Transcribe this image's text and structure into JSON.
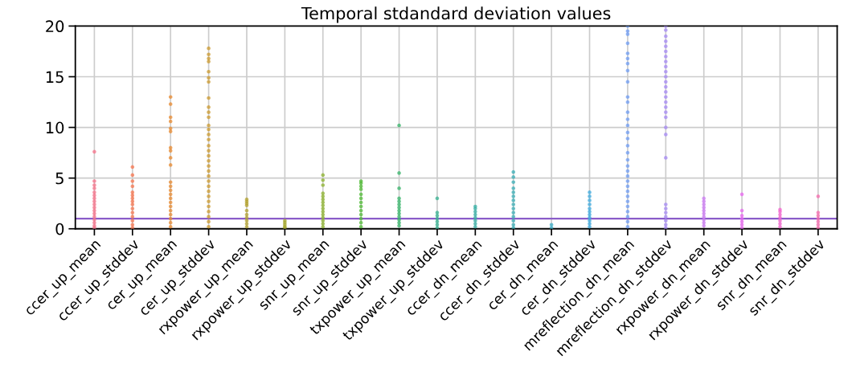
{
  "chart_data": {
    "type": "scatter",
    "title": "Temporal stdandard deviation values",
    "categories": [
      "ccer_up_mean",
      "ccer_up_stddev",
      "cer_up_mean",
      "cer_up_stddev",
      "rxpower_up_mean",
      "rxpower_up_stddev",
      "snr_up_mean",
      "snr_up_stddev",
      "txpower_up_mean",
      "txpower_up_stddev",
      "ccer_dn_mean",
      "ccer_dn_stddev",
      "cer_dn_mean",
      "cer_dn_stddev",
      "mreflection_dn_mean",
      "mreflection_dn_stddev",
      "rxpower_dn_mean",
      "rxpower_dn_stddev",
      "snr_dn_mean",
      "snr_dn_stddev"
    ],
    "ylim": [
      0,
      20
    ],
    "yticks": [
      0,
      5,
      10,
      15,
      20
    ],
    "grid": true,
    "marker": "circle",
    "legend": false,
    "ref_lines": [
      {
        "axis": "y",
        "value": 1,
        "color": "#8a5cc9"
      }
    ],
    "series": [
      {
        "color": "#f77189",
        "x": [
          "ccer_up_mean",
          "ccer_up_mean",
          "ccer_up_mean",
          "ccer_up_mean",
          "ccer_up_mean",
          "ccer_up_mean",
          "ccer_up_mean",
          "ccer_up_mean",
          "ccer_up_mean",
          "ccer_up_mean",
          "ccer_up_mean",
          "ccer_up_mean",
          "ccer_up_mean",
          "ccer_up_mean",
          "ccer_up_mean",
          "ccer_up_mean",
          "ccer_up_mean"
        ],
        "values": [
          7.6,
          4.7,
          4.3,
          4,
          3.6,
          3.3,
          3,
          2.7,
          2.4,
          2.1,
          1.8,
          1.5,
          1.2,
          0.9,
          0.6,
          0.3,
          0.1
        ]
      },
      {
        "color": "#f7754f",
        "x": [
          "ccer_up_stddev",
          "ccer_up_stddev",
          "ccer_up_stddev",
          "ccer_up_stddev",
          "ccer_up_stddev",
          "ccer_up_stddev",
          "ccer_up_stddev",
          "ccer_up_stddev",
          "ccer_up_stddev",
          "ccer_up_stddev",
          "ccer_up_stddev",
          "ccer_up_stddev",
          "ccer_up_stddev",
          "ccer_up_stddev",
          "ccer_up_stddev"
        ],
        "values": [
          6.1,
          5.3,
          4.7,
          4.2,
          3.6,
          3.3,
          3,
          2.7,
          2.4,
          2,
          1.6,
          1.2,
          0.8,
          0.4,
          0.1
        ]
      },
      {
        "color": "#e8892f",
        "x": [
          "cer_up_mean",
          "cer_up_mean",
          "cer_up_mean",
          "cer_up_mean",
          "cer_up_mean",
          "cer_up_mean",
          "cer_up_mean",
          "cer_up_mean",
          "cer_up_mean",
          "cer_up_mean",
          "cer_up_mean",
          "cer_up_mean",
          "cer_up_mean",
          "cer_up_mean",
          "cer_up_mean",
          "cer_up_mean",
          "cer_up_mean",
          "cer_up_mean",
          "cer_up_mean",
          "cer_up_mean",
          "cer_up_mean",
          "cer_up_mean"
        ],
        "values": [
          13,
          12.3,
          11,
          10.6,
          9.9,
          9.6,
          8,
          7.7,
          7,
          6.3,
          4.6,
          4.2,
          3.8,
          3.4,
          3,
          2.6,
          2.2,
          1.8,
          1.4,
          1,
          0.6,
          0.2
        ]
      },
      {
        "color": "#cc9a2e",
        "x": [
          "cer_up_stddev",
          "cer_up_stddev",
          "cer_up_stddev",
          "cer_up_stddev",
          "cer_up_stddev",
          "cer_up_stddev",
          "cer_up_stddev",
          "cer_up_stddev",
          "cer_up_stddev",
          "cer_up_stddev",
          "cer_up_stddev",
          "cer_up_stddev",
          "cer_up_stddev",
          "cer_up_stddev",
          "cer_up_stddev",
          "cer_up_stddev",
          "cer_up_stddev",
          "cer_up_stddev",
          "cer_up_stddev",
          "cer_up_stddev",
          "cer_up_stddev",
          "cer_up_stddev",
          "cer_up_stddev",
          "cer_up_stddev",
          "cer_up_stddev",
          "cer_up_stddev",
          "cer_up_stddev",
          "cer_up_stddev",
          "cer_up_stddev",
          "cer_up_stddev",
          "cer_up_stddev",
          "cer_up_stddev"
        ],
        "values": [
          17.8,
          17.2,
          16.8,
          16.5,
          15.5,
          14.9,
          14.5,
          12.9,
          12,
          11.5,
          11,
          10.2,
          9.8,
          9.3,
          8.8,
          8.2,
          7.7,
          7.2,
          6.7,
          6.2,
          5.7,
          5.2,
          4.7,
          4.2,
          3.7,
          3.2,
          2.7,
          2.2,
          1.7,
          1.2,
          0.7,
          0.2
        ]
      },
      {
        "color": "#b3a22e",
        "x": [
          "rxpower_up_mean",
          "rxpower_up_mean",
          "rxpower_up_mean",
          "rxpower_up_mean",
          "rxpower_up_mean",
          "rxpower_up_mean",
          "rxpower_up_mean",
          "rxpower_up_mean",
          "rxpower_up_mean",
          "rxpower_up_mean"
        ],
        "values": [
          2.9,
          2.7,
          2.5,
          2.3,
          1.8,
          1.4,
          1.1,
          0.8,
          0.5,
          0.2
        ]
      },
      {
        "color": "#a5a82f",
        "x": [
          "rxpower_up_stddev",
          "rxpower_up_stddev",
          "rxpower_up_stddev",
          "rxpower_up_stddev",
          "rxpower_up_stddev"
        ],
        "values": [
          0.8,
          0.6,
          0.4,
          0.2,
          0.1
        ]
      },
      {
        "color": "#8db32f",
        "x": [
          "snr_up_mean",
          "snr_up_mean",
          "snr_up_mean",
          "snr_up_mean",
          "snr_up_mean",
          "snr_up_mean",
          "snr_up_mean",
          "snr_up_mean",
          "snr_up_mean",
          "snr_up_mean",
          "snr_up_mean",
          "snr_up_mean",
          "snr_up_mean",
          "snr_up_mean",
          "snr_up_mean"
        ],
        "values": [
          5.3,
          4.8,
          4.3,
          3.5,
          3.2,
          2.9,
          2.6,
          2.3,
          2,
          1.7,
          1.4,
          1.1,
          0.8,
          0.5,
          0.2
        ]
      },
      {
        "color": "#4fbb34",
        "x": [
          "snr_up_stddev",
          "snr_up_stddev",
          "snr_up_stddev",
          "snr_up_stddev",
          "snr_up_stddev",
          "snr_up_stddev",
          "snr_up_stddev",
          "snr_up_stddev",
          "snr_up_stddev",
          "snr_up_stddev",
          "snr_up_stddev",
          "snr_up_stddev",
          "snr_up_stddev"
        ],
        "values": [
          4.7,
          4.5,
          4.2,
          3.9,
          3.4,
          3,
          2.6,
          2.2,
          1.8,
          1.4,
          1,
          0.6,
          0.2
        ]
      },
      {
        "color": "#34b468",
        "x": [
          "txpower_up_mean",
          "txpower_up_mean",
          "txpower_up_mean",
          "txpower_up_mean",
          "txpower_up_mean",
          "txpower_up_mean",
          "txpower_up_mean",
          "txpower_up_mean",
          "txpower_up_mean",
          "txpower_up_mean",
          "txpower_up_mean",
          "txpower_up_mean",
          "txpower_up_mean"
        ],
        "values": [
          10.2,
          5.5,
          4,
          3,
          2.7,
          2.4,
          2.1,
          1.8,
          1.5,
          1.2,
          0.9,
          0.6,
          0.3
        ]
      },
      {
        "color": "#36b190",
        "x": [
          "txpower_up_stddev",
          "txpower_up_stddev",
          "txpower_up_stddev",
          "txpower_up_stddev",
          "txpower_up_stddev",
          "txpower_up_stddev",
          "txpower_up_stddev"
        ],
        "values": [
          3,
          1.6,
          1.3,
          1,
          0.7,
          0.4,
          0.1
        ]
      },
      {
        "color": "#37b0a6",
        "x": [
          "ccer_dn_mean",
          "ccer_dn_mean",
          "ccer_dn_mean",
          "ccer_dn_mean",
          "ccer_dn_mean",
          "ccer_dn_mean",
          "ccer_dn_mean",
          "ccer_dn_mean"
        ],
        "values": [
          2.2,
          2,
          1.7,
          1.4,
          1.1,
          0.8,
          0.5,
          0.2
        ]
      },
      {
        "color": "#38aeb5",
        "x": [
          "ccer_dn_stddev",
          "ccer_dn_stddev",
          "ccer_dn_stddev",
          "ccer_dn_stddev",
          "ccer_dn_stddev",
          "ccer_dn_stddev",
          "ccer_dn_stddev",
          "ccer_dn_stddev",
          "ccer_dn_stddev",
          "ccer_dn_stddev",
          "ccer_dn_stddev",
          "ccer_dn_stddev",
          "ccer_dn_stddev",
          "ccer_dn_stddev"
        ],
        "values": [
          5.6,
          5.1,
          4.6,
          4,
          3.6,
          3.2,
          2.8,
          2.4,
          2,
          1.6,
          1.2,
          0.8,
          0.4,
          0.1
        ]
      },
      {
        "color": "#39acc6",
        "x": [
          "cer_dn_mean",
          "cer_dn_mean"
        ],
        "values": [
          0.4,
          0.1
        ]
      },
      {
        "color": "#3ba9df",
        "x": [
          "cer_dn_stddev",
          "cer_dn_stddev",
          "cer_dn_stddev",
          "cer_dn_stddev",
          "cer_dn_stddev",
          "cer_dn_stddev",
          "cer_dn_stddev",
          "cer_dn_stddev",
          "cer_dn_stddev",
          "cer_dn_stddev",
          "cer_dn_stddev"
        ],
        "values": [
          3.6,
          3.2,
          2.8,
          2.4,
          2,
          1.7,
          1.4,
          1.1,
          0.8,
          0.5,
          0.2
        ]
      },
      {
        "color": "#6f9cf3",
        "x": [
          "mreflection_dn_mean",
          "mreflection_dn_mean",
          "mreflection_dn_mean",
          "mreflection_dn_mean",
          "mreflection_dn_mean",
          "mreflection_dn_mean",
          "mreflection_dn_mean",
          "mreflection_dn_mean",
          "mreflection_dn_mean",
          "mreflection_dn_mean",
          "mreflection_dn_mean",
          "mreflection_dn_mean",
          "mreflection_dn_mean",
          "mreflection_dn_mean",
          "mreflection_dn_mean",
          "mreflection_dn_mean",
          "mreflection_dn_mean",
          "mreflection_dn_mean",
          "mreflection_dn_mean",
          "mreflection_dn_mean",
          "mreflection_dn_mean",
          "mreflection_dn_mean",
          "mreflection_dn_mean",
          "mreflection_dn_mean",
          "mreflection_dn_mean",
          "mreflection_dn_mean",
          "mreflection_dn_mean",
          "mreflection_dn_mean",
          "mreflection_dn_mean",
          "mreflection_dn_mean",
          "mreflection_dn_mean",
          "mreflection_dn_mean"
        ],
        "values": [
          20,
          19.5,
          19.2,
          18.3,
          17.3,
          16.8,
          16.3,
          15.6,
          14.5,
          13,
          12.5,
          11.5,
          10.8,
          10.2,
          9.5,
          8.9,
          8.2,
          7.5,
          6.8,
          6.2,
          5.7,
          5.2,
          4.7,
          4.2,
          3.7,
          3.2,
          2.7,
          2.2,
          1.7,
          1.2,
          0.7,
          0.2
        ]
      },
      {
        "color": "#a58af4",
        "x": [
          "mreflection_dn_stddev",
          "mreflection_dn_stddev",
          "mreflection_dn_stddev",
          "mreflection_dn_stddev",
          "mreflection_dn_stddev",
          "mreflection_dn_stddev",
          "mreflection_dn_stddev",
          "mreflection_dn_stddev",
          "mreflection_dn_stddev",
          "mreflection_dn_stddev",
          "mreflection_dn_stddev",
          "mreflection_dn_stddev",
          "mreflection_dn_stddev",
          "mreflection_dn_stddev",
          "mreflection_dn_stddev",
          "mreflection_dn_stddev",
          "mreflection_dn_stddev",
          "mreflection_dn_stddev",
          "mreflection_dn_stddev",
          "mreflection_dn_stddev",
          "mreflection_dn_stddev",
          "mreflection_dn_stddev",
          "mreflection_dn_stddev",
          "mreflection_dn_stddev",
          "mreflection_dn_stddev",
          "mreflection_dn_stddev",
          "mreflection_dn_stddev",
          "mreflection_dn_stddev",
          "mreflection_dn_stddev"
        ],
        "values": [
          20,
          19.6,
          19,
          18.5,
          18,
          17.5,
          17,
          16.5,
          16,
          15.5,
          15,
          14.5,
          14,
          13.5,
          13,
          12.5,
          12,
          11.5,
          11,
          10,
          9.3,
          7,
          2.4,
          2,
          1.6,
          1.2,
          0.8,
          0.4,
          0.1
        ]
      },
      {
        "color": "#cc7af4",
        "x": [
          "rxpower_dn_mean",
          "rxpower_dn_mean",
          "rxpower_dn_mean",
          "rxpower_dn_mean",
          "rxpower_dn_mean",
          "rxpower_dn_mean",
          "rxpower_dn_mean",
          "rxpower_dn_mean",
          "rxpower_dn_mean",
          "rxpower_dn_mean"
        ],
        "values": [
          3,
          2.7,
          2.4,
          2.1,
          1.8,
          1.5,
          1.2,
          0.9,
          0.6,
          0.3
        ]
      },
      {
        "color": "#e865f0",
        "x": [
          "rxpower_dn_stddev",
          "rxpower_dn_stddev",
          "rxpower_dn_stddev",
          "rxpower_dn_stddev",
          "rxpower_dn_stddev",
          "rxpower_dn_stddev",
          "rxpower_dn_stddev"
        ],
        "values": [
          3.4,
          1.8,
          1.3,
          1,
          0.7,
          0.4,
          0.1
        ]
      },
      {
        "color": "#f564d0",
        "x": [
          "snr_dn_mean",
          "snr_dn_mean",
          "snr_dn_mean",
          "snr_dn_mean",
          "snr_dn_mean",
          "snr_dn_mean",
          "snr_dn_mean"
        ],
        "values": [
          1.9,
          1.7,
          1.4,
          1.1,
          0.8,
          0.5,
          0.2
        ]
      },
      {
        "color": "#f66bad",
        "x": [
          "snr_dn_stddev",
          "snr_dn_stddev",
          "snr_dn_stddev",
          "snr_dn_stddev",
          "snr_dn_stddev",
          "snr_dn_stddev",
          "snr_dn_stddev"
        ],
        "values": [
          3.2,
          1.6,
          1.3,
          1,
          0.7,
          0.4,
          0.1
        ]
      }
    ]
  }
}
